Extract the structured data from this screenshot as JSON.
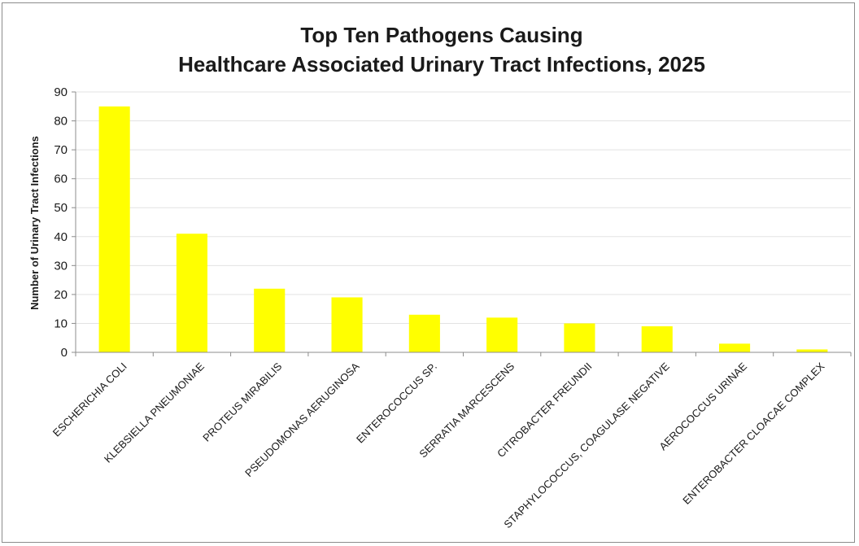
{
  "chart_data": {
    "type": "bar",
    "title": [
      "Top Ten Pathogens Causing",
      "Healthcare Associated Urinary Tract Infections, 2025"
    ],
    "xlabel": "",
    "ylabel": "Number of Urinary Tract Infections",
    "ylim": [
      0,
      90
    ],
    "yticks": [
      0,
      10,
      20,
      30,
      40,
      50,
      60,
      70,
      80,
      90
    ],
    "grid": true,
    "legend": "none",
    "bar_color": "#ffff00",
    "categories": [
      "ESCHERICHIA COLI",
      "KLEBSIELLA PNEUMONIAE",
      "PROTEUS MIRABILIS",
      "PSEUDOMONAS AERUGINOSA",
      "ENTEROCOCCUS SP.",
      "SERRATIA MARCESCENS",
      "CITROBACTER FREUNDII",
      "STAPHYLOCOCCUS, COAGULASE NEGATIVE",
      "AEROCOCCUS URINAE",
      "ENTEROBACTER CLOACAE COMPLEX"
    ],
    "values": [
      85,
      41,
      22,
      19,
      13,
      12,
      10,
      9,
      3,
      1
    ]
  }
}
